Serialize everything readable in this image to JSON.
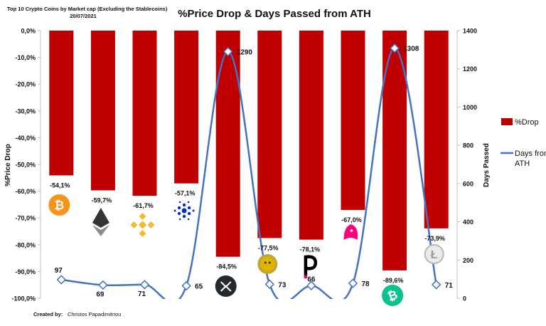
{
  "header": {
    "subtitle_line1": "Top 10 Crypto Coins by Market cap (Excluding the Stablecoins)",
    "subtitle_line2": "20/07/2021"
  },
  "footer": {
    "credit_prefix": "Created by:",
    "credit_name": "Christos Papadimitriou"
  },
  "colors": {
    "bar": "#c00000",
    "line": "#4472c4",
    "axis": "#bfbfbf"
  },
  "coin_icons": [
    "bitcoin-icon",
    "ethereum-icon",
    "binance-coin-icon",
    "cardano-icon",
    "xrp-icon",
    "dogecoin-icon",
    "polkadot-icon",
    "uniswap-icon",
    "bitcoin-cash-icon",
    "litecoin-icon"
  ],
  "chart_data": {
    "type": "bar",
    "title": "%Price Drop & Days Passed from ATH",
    "ylabel": "%Price Drop",
    "y2label": "Days Passed",
    "ylim": [
      -100,
      0
    ],
    "y2lim": [
      0,
      1400
    ],
    "y_ticks": [
      "0,0%",
      "-10,0%",
      "-20,0%",
      "-30,0%",
      "-40,0%",
      "-50,0%",
      "-60,0%",
      "-70,0%",
      "-80,0%",
      "-90,0%",
      "-100,0%"
    ],
    "y2_ticks": [
      "0",
      "200",
      "400",
      "600",
      "800",
      "1000",
      "1200",
      "1400"
    ],
    "legend_position": "right",
    "series": [
      {
        "name": "%Drop",
        "type": "bar",
        "values": [
          -54.1,
          -59.7,
          -61.7,
          -57.1,
          -84.5,
          -77.5,
          -78.1,
          -67.0,
          -89.6,
          -73.9
        ],
        "labels": [
          "-54,1%",
          "-59,7%",
          "-61,7%",
          "-57,1%",
          "-84,5%",
          "-77,5%",
          "-78,1%",
          "-67,0%",
          "-89,6%",
          "-73,9%"
        ]
      },
      {
        "name": "Days from ATH",
        "type": "line",
        "axis": "secondary",
        "values": [
          97,
          69,
          71,
          65,
          1290,
          73,
          66,
          78,
          1308,
          71
        ],
        "labels": [
          "97",
          "69",
          "71",
          "65",
          "1290",
          "73",
          "66",
          "78",
          "1308",
          "71"
        ]
      }
    ]
  }
}
